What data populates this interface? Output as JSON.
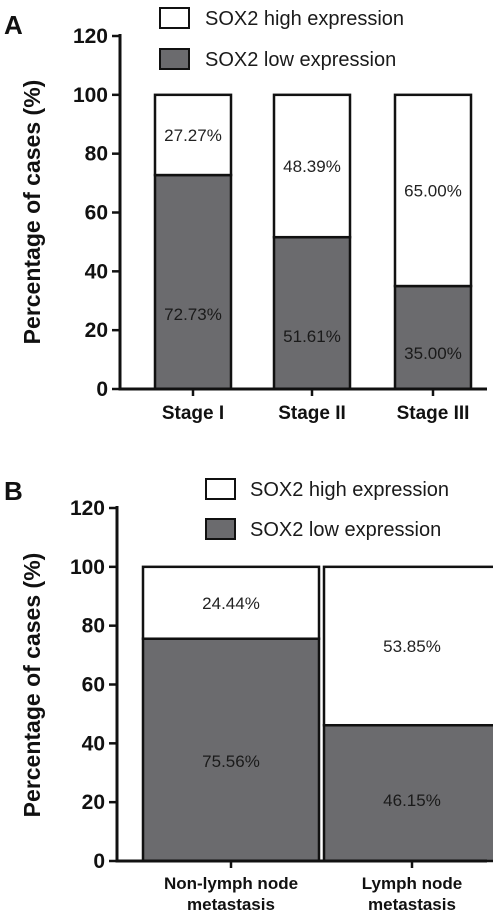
{
  "panels": [
    {
      "letter": "A",
      "chart_data": {
        "type": "bar",
        "stacked": true,
        "categories": [
          [
            "Stage I"
          ],
          [
            "Stage II"
          ],
          [
            "Stage III"
          ]
        ],
        "series": [
          {
            "name": "SOX2 low expression",
            "values": [
              72.73,
              51.61,
              35.0
            ],
            "labels": [
              "72.73%",
              "51.61%",
              "35.00%"
            ],
            "color": "#6b6b6e"
          },
          {
            "name": "SOX2 high expression",
            "values": [
              27.27,
              48.39,
              65.0
            ],
            "labels": [
              "27.27%",
              "48.39%",
              "65.00%"
            ],
            "color": "#ffffff"
          }
        ],
        "ylabel": "Percentage of cases (%)",
        "ylim": [
          0,
          120
        ],
        "yticks": [
          0,
          20,
          40,
          60,
          80,
          100,
          120
        ],
        "legend_position": "top",
        "grid": false
      }
    },
    {
      "letter": "B",
      "chart_data": {
        "type": "bar",
        "stacked": true,
        "categories": [
          [
            "Non-lymph node",
            "metastasis"
          ],
          [
            "Lymph node",
            "metastasis"
          ]
        ],
        "series": [
          {
            "name": "SOX2 low expression",
            "values": [
              75.56,
              46.15
            ],
            "labels": [
              "75.56%",
              "46.15%"
            ],
            "color": "#6b6b6e"
          },
          {
            "name": "SOX2 high expression",
            "values": [
              24.44,
              53.85
            ],
            "labels": [
              "24.44%",
              "53.85%"
            ],
            "color": "#ffffff"
          }
        ],
        "ylabel": "Percentage of cases (%)",
        "ylim": [
          0,
          120
        ],
        "yticks": [
          0,
          20,
          40,
          60,
          80,
          100,
          120
        ],
        "legend_position": "top",
        "grid": false
      }
    }
  ]
}
